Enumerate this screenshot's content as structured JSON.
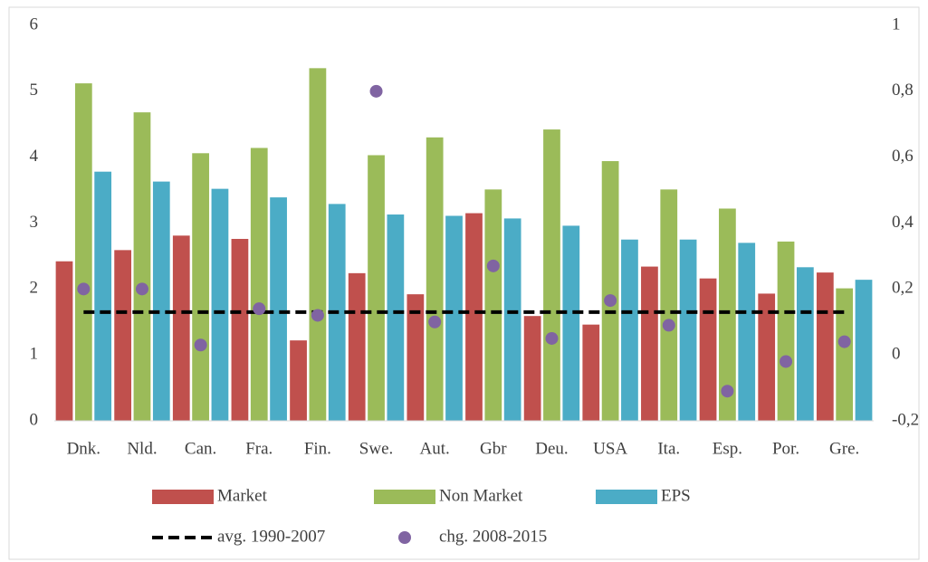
{
  "chart_data": {
    "type": "bar",
    "categories": [
      "Dnk.",
      "Nld.",
      "Can.",
      "Fra.",
      "Fin.",
      "Swe.",
      "Aut.",
      "Gbr",
      "Deu.",
      "USA",
      "Ita.",
      "Esp.",
      "Por.",
      "Gre."
    ],
    "series": [
      {
        "name": "Market",
        "type": "bar",
        "color": "#c0504d",
        "values": [
          2.42,
          2.59,
          2.81,
          2.76,
          1.22,
          2.24,
          1.92,
          3.15,
          1.59,
          1.46,
          2.34,
          2.16,
          1.93,
          2.25
        ]
      },
      {
        "name": "Non Market",
        "type": "bar",
        "color": "#9bbb59",
        "values": [
          5.12,
          4.68,
          4.06,
          4.14,
          5.35,
          4.03,
          4.3,
          3.51,
          4.42,
          3.94,
          3.51,
          3.22,
          2.72,
          2.01
        ]
      },
      {
        "name": "EPS",
        "type": "bar",
        "color": "#4bacc6",
        "values": [
          3.78,
          3.63,
          3.52,
          3.39,
          3.29,
          3.13,
          3.11,
          3.07,
          2.96,
          2.75,
          2.75,
          2.7,
          2.33,
          2.14
        ]
      },
      {
        "name": "avg. 1990-2007",
        "type": "line",
        "color": "#000000",
        "values": [
          1.65,
          1.65,
          1.65,
          1.65,
          1.65,
          1.65,
          1.65,
          1.65,
          1.65,
          1.65,
          1.65,
          1.65,
          1.65,
          1.65
        ]
      },
      {
        "name": "chg. 2008-2015",
        "type": "scatter",
        "axis": "y2",
        "color": "#8064a2",
        "values": [
          0.2,
          0.2,
          0.03,
          0.14,
          0.12,
          0.8,
          0.1,
          0.27,
          0.05,
          0.165,
          0.09,
          -0.11,
          -0.02,
          0.04
        ]
      }
    ],
    "ylim": [
      0,
      6
    ],
    "yticks": [
      0,
      1,
      2,
      3,
      4,
      5,
      6
    ],
    "y2lim": [
      -0.2,
      1
    ],
    "y2ticks": [
      {
        "value": -0.2,
        "label": "-0,2"
      },
      0,
      {
        "value": 0.2,
        "label": "0,2"
      },
      {
        "value": 0.4,
        "label": "0,4"
      },
      {
        "value": 0.6,
        "label": "0,6"
      },
      {
        "value": 0.8,
        "label": "0,8"
      },
      1
    ],
    "grid": false
  }
}
